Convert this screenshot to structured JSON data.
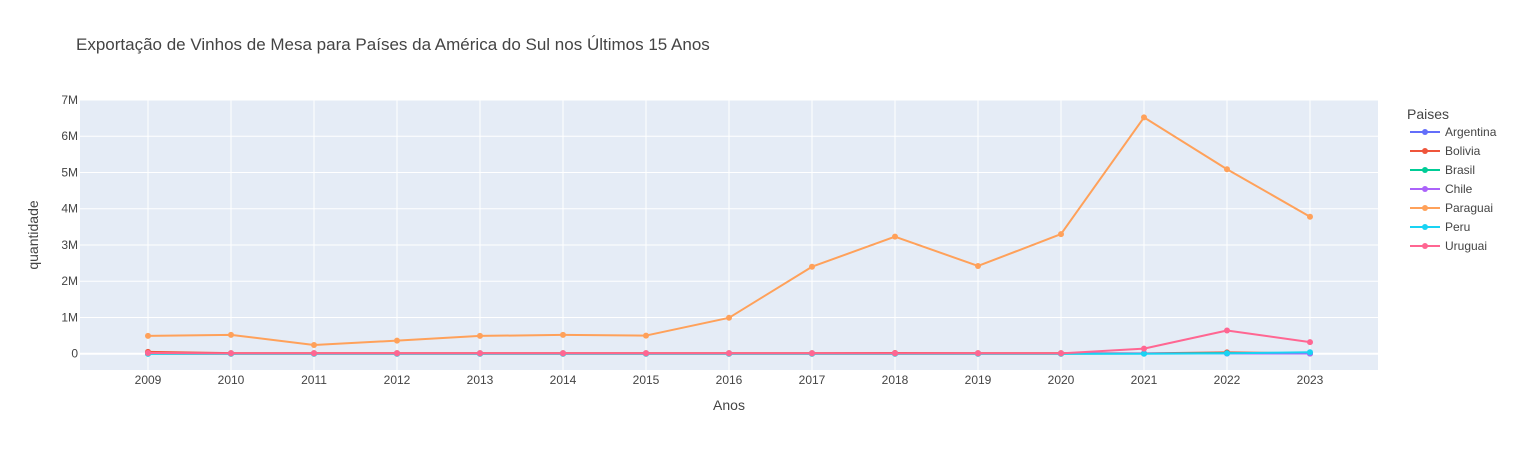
{
  "chart_data": {
    "type": "line",
    "title": "Exportação de Vinhos de Mesa para Países da América do Sul nos Últimos 15 Anos",
    "xlabel": "Anos",
    "ylabel": "quantidade",
    "x": [
      "2009",
      "2010",
      "2011",
      "2012",
      "2013",
      "2014",
      "2015",
      "2016",
      "2017",
      "2018",
      "2019",
      "2020",
      "2021",
      "2022",
      "2023"
    ],
    "ylim": [
      -450000,
      7000000
    ],
    "yticks": [
      0,
      1000000,
      2000000,
      3000000,
      4000000,
      5000000,
      6000000,
      7000000
    ],
    "ytick_labels": [
      "0",
      "1M",
      "2M",
      "3M",
      "4M",
      "5M",
      "6M",
      "7M"
    ],
    "grid": true,
    "legend_title": "Paises",
    "legend_position": "right",
    "series": [
      {
        "name": "Argentina",
        "color": "#636efa",
        "values": [
          10000,
          5000,
          5000,
          5000,
          5000,
          5000,
          5000,
          5000,
          5000,
          5000,
          5000,
          5000,
          5000,
          5000,
          5000
        ]
      },
      {
        "name": "Bolivia",
        "color": "#ef553b",
        "values": [
          50000,
          15000,
          15000,
          15000,
          15000,
          15000,
          15000,
          15000,
          15000,
          20000,
          15000,
          15000,
          10000,
          35000,
          10000
        ]
      },
      {
        "name": "Brasil",
        "color": "#00cc96",
        "values": [
          0,
          0,
          0,
          0,
          0,
          0,
          0,
          0,
          0,
          0,
          0,
          0,
          5000,
          15000,
          5000
        ]
      },
      {
        "name": "Chile",
        "color": "#ab63fa",
        "values": [
          5000,
          5000,
          5000,
          5000,
          5000,
          5000,
          5000,
          5000,
          5000,
          5000,
          5000,
          5000,
          5000,
          5000,
          5000
        ]
      },
      {
        "name": "Paraguai",
        "color": "#ffa15a",
        "values": [
          490000,
          520000,
          240000,
          360000,
          490000,
          520000,
          500000,
          990000,
          2400000,
          3230000,
          2420000,
          3300000,
          6520000,
          5090000,
          3780000
        ]
      },
      {
        "name": "Peru",
        "color": "#19d3f3",
        "values": [
          0,
          0,
          0,
          0,
          0,
          0,
          0,
          0,
          0,
          0,
          0,
          0,
          0,
          10000,
          40000
        ]
      },
      {
        "name": "Uruguai",
        "color": "#ff6692",
        "values": [
          20000,
          10000,
          10000,
          10000,
          10000,
          10000,
          10000,
          10000,
          10000,
          10000,
          10000,
          10000,
          140000,
          640000,
          320000
        ]
      }
    ]
  }
}
